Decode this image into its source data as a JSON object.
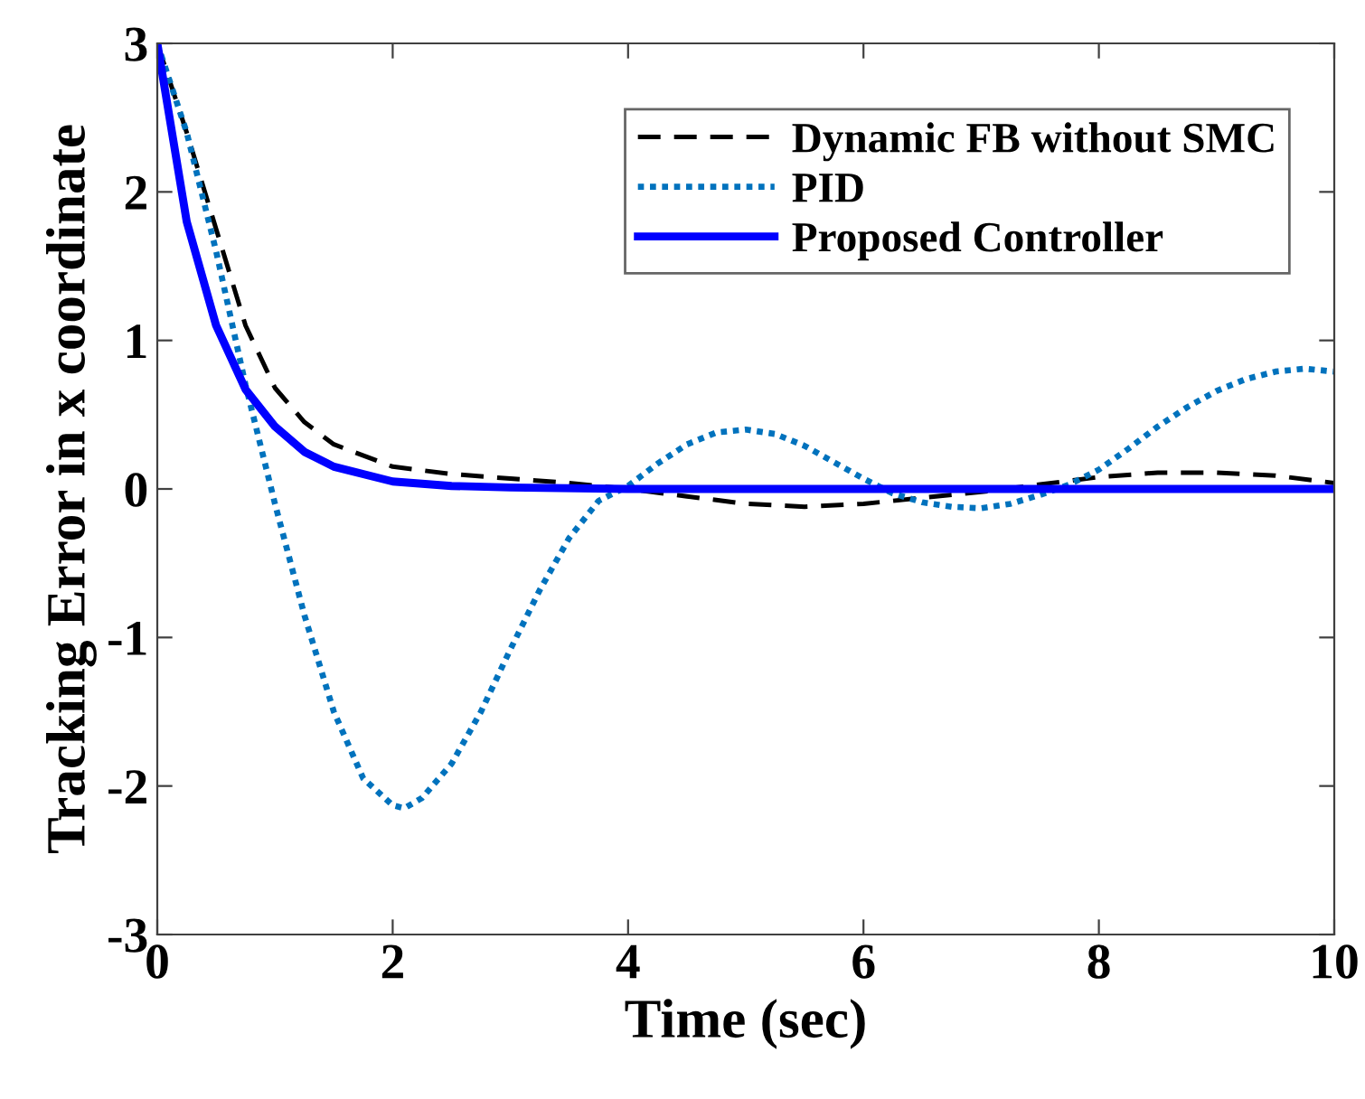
{
  "chart_data": {
    "type": "line",
    "xlabel": "Time (sec)",
    "ylabel": "Tracking Error in x coordinate",
    "xlim": [
      0,
      10
    ],
    "ylim": [
      -3,
      3
    ],
    "xticks": [
      0,
      2,
      4,
      6,
      8,
      10
    ],
    "yticks": [
      -3,
      -2,
      -1,
      0,
      1,
      2,
      3
    ],
    "grid": false,
    "legend": "top right",
    "series": [
      {
        "name": "Dynamic FB without SMC",
        "color": "#000000",
        "line_style": "dashed",
        "x": [
          0,
          0.25,
          0.5,
          0.75,
          1,
          1.25,
          1.5,
          2,
          2.5,
          3,
          3.5,
          4,
          4.5,
          5,
          5.5,
          6,
          6.5,
          7,
          7.5,
          8,
          8.5,
          9,
          9.5,
          10
        ],
        "values": [
          3,
          2.4,
          1.75,
          1.1,
          0.68,
          0.45,
          0.3,
          0.15,
          0.1,
          0.07,
          0.04,
          0.0,
          -0.05,
          -0.1,
          -0.12,
          -0.1,
          -0.06,
          -0.02,
          0.03,
          0.08,
          0.11,
          0.11,
          0.09,
          0.04
        ]
      },
      {
        "name": "PID",
        "color": "#0072bd",
        "line_style": "dotted",
        "x": [
          0,
          0.25,
          0.5,
          0.75,
          1,
          1.25,
          1.5,
          1.75,
          2,
          2.1,
          2.25,
          2.5,
          2.75,
          3,
          3.25,
          3.5,
          3.75,
          4,
          4.25,
          4.5,
          4.75,
          5,
          5.25,
          5.5,
          5.75,
          6,
          6.25,
          6.5,
          6.75,
          7,
          7.25,
          7.5,
          7.75,
          8,
          8.25,
          8.5,
          8.75,
          9,
          9.25,
          9.5,
          9.75,
          10
        ],
        "values": [
          3,
          2.4,
          1.6,
          0.7,
          -0.1,
          -0.85,
          -1.5,
          -1.95,
          -2.13,
          -2.15,
          -2.08,
          -1.85,
          -1.5,
          -1.08,
          -0.68,
          -0.33,
          -0.08,
          0.02,
          0.17,
          0.3,
          0.38,
          0.4,
          0.37,
          0.29,
          0.18,
          0.07,
          -0.03,
          -0.09,
          -0.12,
          -0.13,
          -0.1,
          -0.04,
          0.03,
          0.13,
          0.27,
          0.42,
          0.55,
          0.66,
          0.74,
          0.79,
          0.81,
          0.79
        ]
      },
      {
        "name": "Proposed Controller",
        "color": "#0000ff",
        "line_style": "solid",
        "x": [
          0,
          0.25,
          0.5,
          0.75,
          1,
          1.25,
          1.5,
          2,
          2.5,
          3,
          4,
          5,
          6,
          7,
          8,
          9,
          10
        ],
        "values": [
          3,
          1.8,
          1.1,
          0.67,
          0.42,
          0.25,
          0.15,
          0.05,
          0.02,
          0.01,
          0,
          0,
          0,
          0,
          0,
          0,
          0
        ]
      }
    ]
  }
}
